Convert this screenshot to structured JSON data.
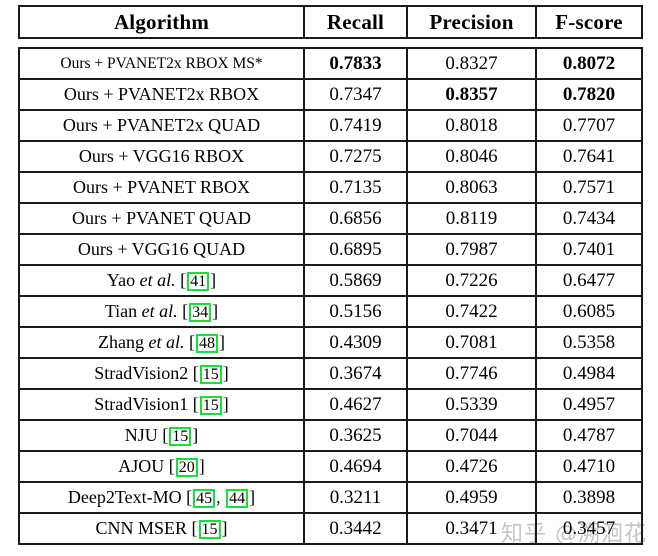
{
  "watermark": {
    "text": "知乎 @溯洄花",
    "color": "#a0a5aa"
  },
  "table": {
    "headers": [
      "Algorithm",
      "Recall",
      "Precision",
      "F-score"
    ],
    "border_color": "#1a1a1a",
    "citation_box_color": "#17e03a",
    "rows": [
      {
        "small": true,
        "label": [
          {
            "t": "Ours + PVANET2x RBOX MS*"
          }
        ],
        "cells": [
          {
            "v": "0.7833",
            "b": true
          },
          {
            "v": "0.8327",
            "b": false
          },
          {
            "v": "0.8072",
            "b": true
          }
        ]
      },
      {
        "small": false,
        "label": [
          {
            "t": "Ours + PVANET2x RBOX"
          }
        ],
        "cells": [
          {
            "v": "0.7347",
            "b": false
          },
          {
            "v": "0.8357",
            "b": true
          },
          {
            "v": "0.7820",
            "b": true
          }
        ]
      },
      {
        "small": false,
        "label": [
          {
            "t": "Ours + PVANET2x QUAD"
          }
        ],
        "cells": [
          {
            "v": "0.7419",
            "b": false
          },
          {
            "v": "0.8018",
            "b": false
          },
          {
            "v": "0.7707",
            "b": false
          }
        ]
      },
      {
        "small": false,
        "label": [
          {
            "t": "Ours + VGG16 RBOX"
          }
        ],
        "cells": [
          {
            "v": "0.7275",
            "b": false
          },
          {
            "v": "0.8046",
            "b": false
          },
          {
            "v": "0.7641",
            "b": false
          }
        ]
      },
      {
        "small": false,
        "label": [
          {
            "t": "Ours + PVANET RBOX"
          }
        ],
        "cells": [
          {
            "v": "0.7135",
            "b": false
          },
          {
            "v": "0.8063",
            "b": false
          },
          {
            "v": "0.7571",
            "b": false
          }
        ]
      },
      {
        "small": false,
        "label": [
          {
            "t": "Ours + PVANET QUAD"
          }
        ],
        "cells": [
          {
            "v": "0.6856",
            "b": false
          },
          {
            "v": "0.8119",
            "b": false
          },
          {
            "v": "0.7434",
            "b": false
          }
        ]
      },
      {
        "small": false,
        "label": [
          {
            "t": "Ours + VGG16 QUAD"
          }
        ],
        "cells": [
          {
            "v": "0.6895",
            "b": false
          },
          {
            "v": "0.7987",
            "b": false
          },
          {
            "v": "0.7401",
            "b": false
          }
        ]
      },
      {
        "small": false,
        "label": [
          {
            "t": "Yao "
          },
          {
            "i": "et al."
          },
          {
            "t": " ["
          },
          {
            "c": "41"
          },
          {
            "t": "]"
          }
        ],
        "cells": [
          {
            "v": "0.5869",
            "b": false
          },
          {
            "v": "0.7226",
            "b": false
          },
          {
            "v": "0.6477",
            "b": false
          }
        ]
      },
      {
        "small": false,
        "label": [
          {
            "t": "Tian "
          },
          {
            "i": "et al."
          },
          {
            "t": " ["
          },
          {
            "c": "34"
          },
          {
            "t": "]"
          }
        ],
        "cells": [
          {
            "v": "0.5156",
            "b": false
          },
          {
            "v": "0.7422",
            "b": false
          },
          {
            "v": "0.6085",
            "b": false
          }
        ]
      },
      {
        "small": false,
        "label": [
          {
            "t": "Zhang "
          },
          {
            "i": "et al."
          },
          {
            "t": " ["
          },
          {
            "c": "48"
          },
          {
            "t": "]"
          }
        ],
        "cells": [
          {
            "v": "0.4309",
            "b": false
          },
          {
            "v": "0.7081",
            "b": false
          },
          {
            "v": "0.5358",
            "b": false
          }
        ]
      },
      {
        "small": false,
        "label": [
          {
            "t": "StradVision2 ["
          },
          {
            "c": "15"
          },
          {
            "t": "]"
          }
        ],
        "cells": [
          {
            "v": "0.3674",
            "b": false
          },
          {
            "v": "0.7746",
            "b": false
          },
          {
            "v": "0.4984",
            "b": false
          }
        ]
      },
      {
        "small": false,
        "label": [
          {
            "t": "StradVision1 ["
          },
          {
            "c": "15"
          },
          {
            "t": "]"
          }
        ],
        "cells": [
          {
            "v": "0.4627",
            "b": false
          },
          {
            "v": "0.5339",
            "b": false
          },
          {
            "v": "0.4957",
            "b": false
          }
        ]
      },
      {
        "small": false,
        "label": [
          {
            "t": "NJU ["
          },
          {
            "c": "15"
          },
          {
            "t": "]"
          }
        ],
        "cells": [
          {
            "v": "0.3625",
            "b": false
          },
          {
            "v": "0.7044",
            "b": false
          },
          {
            "v": "0.4787",
            "b": false
          }
        ]
      },
      {
        "small": false,
        "label": [
          {
            "t": "AJOU ["
          },
          {
            "c": "20"
          },
          {
            "t": "]"
          }
        ],
        "cells": [
          {
            "v": "0.4694",
            "b": false
          },
          {
            "v": "0.4726",
            "b": false
          },
          {
            "v": "0.4710",
            "b": false
          }
        ]
      },
      {
        "small": false,
        "label": [
          {
            "t": "Deep2Text-MO ["
          },
          {
            "c": "45"
          },
          {
            "t": ", "
          },
          {
            "c": "44"
          },
          {
            "t": "]"
          }
        ],
        "cells": [
          {
            "v": "0.3211",
            "b": false
          },
          {
            "v": "0.4959",
            "b": false
          },
          {
            "v": "0.3898",
            "b": false
          }
        ]
      },
      {
        "small": false,
        "label": [
          {
            "t": "CNN MSER ["
          },
          {
            "c": "15"
          },
          {
            "t": "]"
          }
        ],
        "cells": [
          {
            "v": "0.3442",
            "b": false
          },
          {
            "v": "0.3471",
            "b": false
          },
          {
            "v": "0.3457",
            "b": false
          }
        ]
      }
    ]
  }
}
